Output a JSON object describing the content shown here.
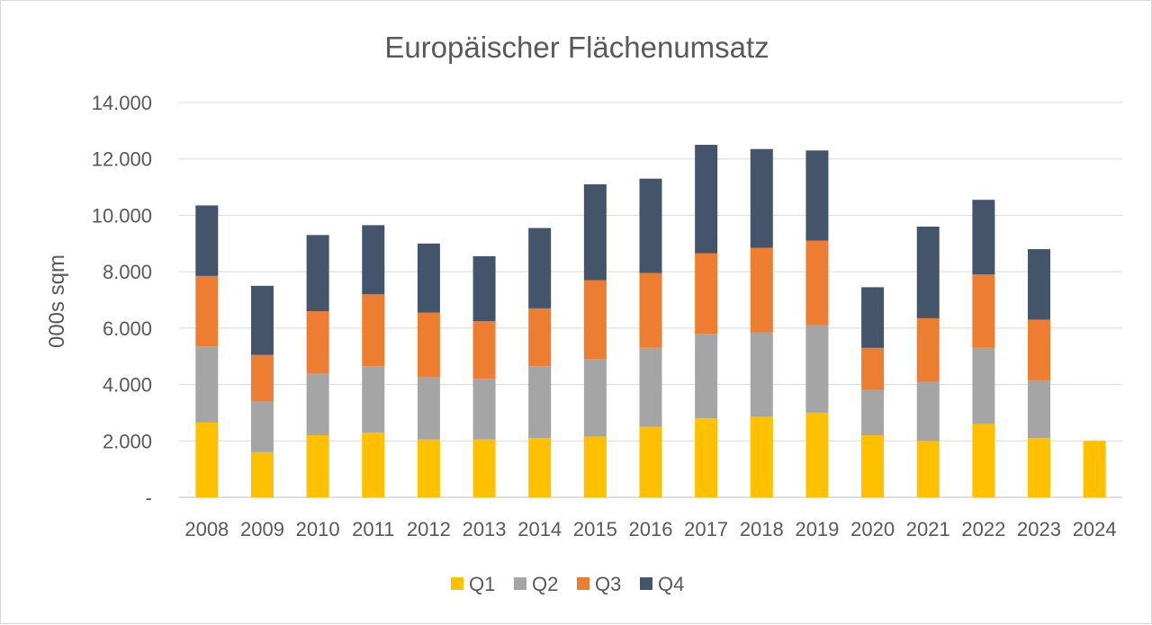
{
  "chart_data": {
    "type": "bar",
    "stacked": true,
    "title": "Europäischer Flächenumsatz",
    "xlabel": "",
    "ylabel": "000s sqm",
    "ylim": [
      0,
      14000
    ],
    "y_ticks": [
      0,
      2000,
      4000,
      6000,
      8000,
      10000,
      12000,
      14000
    ],
    "y_tick_labels": [
      "-",
      "2.000",
      "4.000",
      "6.000",
      "8.000",
      "10.000",
      "12.000",
      "14.000"
    ],
    "grid": true,
    "legend_position": "bottom",
    "categories": [
      "2008",
      "2009",
      "2010",
      "2011",
      "2012",
      "2013",
      "2014",
      "2015",
      "2016",
      "2017",
      "2018",
      "2019",
      "2020",
      "2021",
      "2022",
      "2023",
      "2024"
    ],
    "series": [
      {
        "name": "Q1",
        "color": "#FFC000",
        "values": [
          2650,
          1600,
          2200,
          2300,
          2050,
          2050,
          2100,
          2150,
          2500,
          2800,
          2850,
          3000,
          2200,
          2000,
          2600,
          2100,
          2000
        ]
      },
      {
        "name": "Q2",
        "color": "#A5A5A5",
        "values": [
          2700,
          1800,
          2200,
          2350,
          2200,
          2150,
          2550,
          2750,
          2800,
          3000,
          3000,
          3100,
          1600,
          2100,
          2700,
          2050,
          0
        ]
      },
      {
        "name": "Q3",
        "color": "#ED7D31",
        "values": [
          2500,
          1650,
          2200,
          2550,
          2300,
          2050,
          2050,
          2800,
          2650,
          2850,
          3000,
          3000,
          1500,
          2250,
          2600,
          2150,
          0
        ]
      },
      {
        "name": "Q4",
        "color": "#44546A",
        "values": [
          2500,
          2450,
          2700,
          2450,
          2450,
          2300,
          2850,
          3400,
          3350,
          3850,
          3500,
          3200,
          2150,
          3250,
          2650,
          2500,
          0
        ]
      }
    ]
  }
}
